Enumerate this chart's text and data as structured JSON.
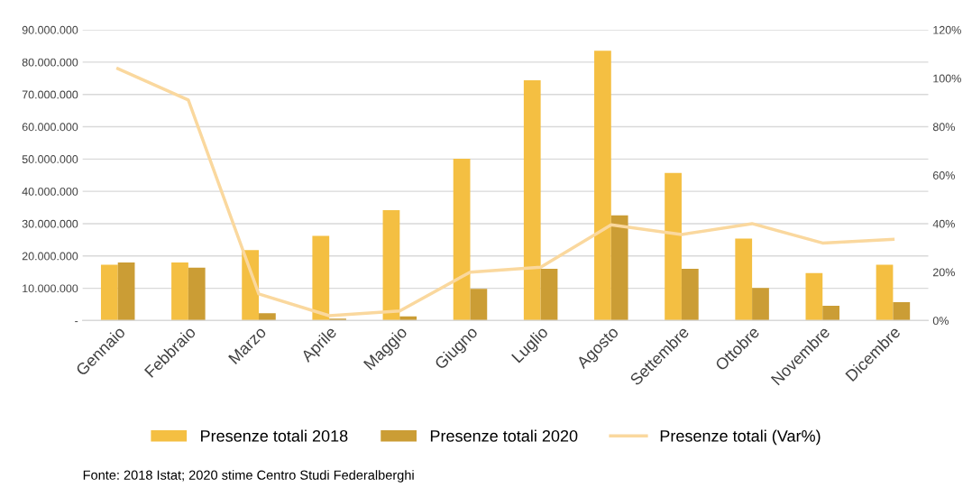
{
  "chart_data": {
    "type": "bar",
    "categories": [
      "Gennaio",
      "Febbraio",
      "Marzo",
      "Aprile",
      "Maggio",
      "Giugno",
      "Luglio",
      "Agosto",
      "Settembre",
      "Ottobre",
      "Novembre",
      "Dicembre"
    ],
    "series": [
      {
        "name": "Presenze totali 2018",
        "color": "#f4bf42",
        "values": [
          17300000,
          18000000,
          21800000,
          26200000,
          34200000,
          50100000,
          74400000,
          83500000,
          45700000,
          25400000,
          14700000,
          17300000
        ]
      },
      {
        "name": "Presenze totali 2020",
        "color": "#cb9d35",
        "values": [
          18000000,
          16400000,
          2300000,
          600000,
          1300000,
          9800000,
          16000000,
          32600000,
          16000000,
          10100000,
          4600000,
          5700000
        ]
      },
      {
        "name": "Presenze totali (Var%)",
        "type": "line",
        "axis": "y2",
        "color": "#fad89e",
        "values": [
          104,
          91,
          11,
          2,
          4,
          20,
          22,
          39.5,
          35.5,
          40,
          32,
          33.5
        ]
      }
    ],
    "ylim": [
      0,
      90000000
    ],
    "yticks": [
      {
        "value": 0,
        "label": "-"
      },
      {
        "value": 10000000,
        "label": "10.000.000"
      },
      {
        "value": 20000000,
        "label": "20.000.000"
      },
      {
        "value": 30000000,
        "label": "30.000.000"
      },
      {
        "value": 40000000,
        "label": "40.000.000"
      },
      {
        "value": 50000000,
        "label": "50.000.000"
      },
      {
        "value": 60000000,
        "label": "60.000.000"
      },
      {
        "value": 70000000,
        "label": "70.000.000"
      },
      {
        "value": 80000000,
        "label": "80.000.000"
      },
      {
        "value": 90000000,
        "label": "90.000.000"
      }
    ],
    "y2lim": [
      0,
      120
    ],
    "y2ticks": [
      {
        "value": 0,
        "label": "0%"
      },
      {
        "value": 20,
        "label": "20%"
      },
      {
        "value": 40,
        "label": "40%"
      },
      {
        "value": 60,
        "label": "60%"
      },
      {
        "value": 80,
        "label": "80%"
      },
      {
        "value": 100,
        "label": "100%"
      },
      {
        "value": 120,
        "label": "120%"
      }
    ],
    "grid": "y",
    "legend": "bottom",
    "annotations": [
      "Fonte: 2018 Istat; 2020 stime Centro Studi Federalberghi"
    ]
  }
}
